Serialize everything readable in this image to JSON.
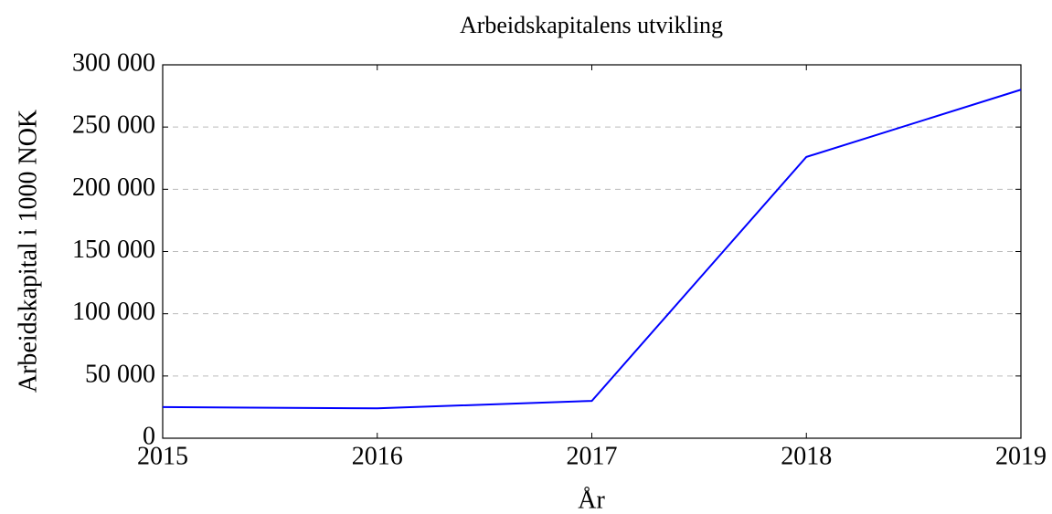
{
  "chart_data": {
    "type": "line",
    "title": "Arbeidskapitalens utvikling",
    "xlabel": "År",
    "ylabel": "Arbeidskapital i 1000 NOK",
    "x": [
      2015,
      2016,
      2017,
      2018,
      2019
    ],
    "series": [
      {
        "name": "Arbeidskapital",
        "color": "#0000ff",
        "values": [
          25000,
          24000,
          30000,
          226000,
          280000
        ]
      }
    ],
    "xlim": [
      2015,
      2019
    ],
    "xticks": [
      2015,
      2016,
      2017,
      2018,
      2019
    ],
    "ylim": [
      0,
      300000
    ],
    "yticks": [
      0,
      {
        "value": 50000,
        "label": "50 000"
      },
      {
        "value": 100000,
        "label": "100 000"
      },
      {
        "value": 150000,
        "label": "150 000"
      },
      {
        "value": 200000,
        "label": "200 000"
      },
      {
        "value": 250000,
        "label": "250 000"
      },
      {
        "value": 300000,
        "label": "300 000"
      }
    ],
    "grid": true
  }
}
